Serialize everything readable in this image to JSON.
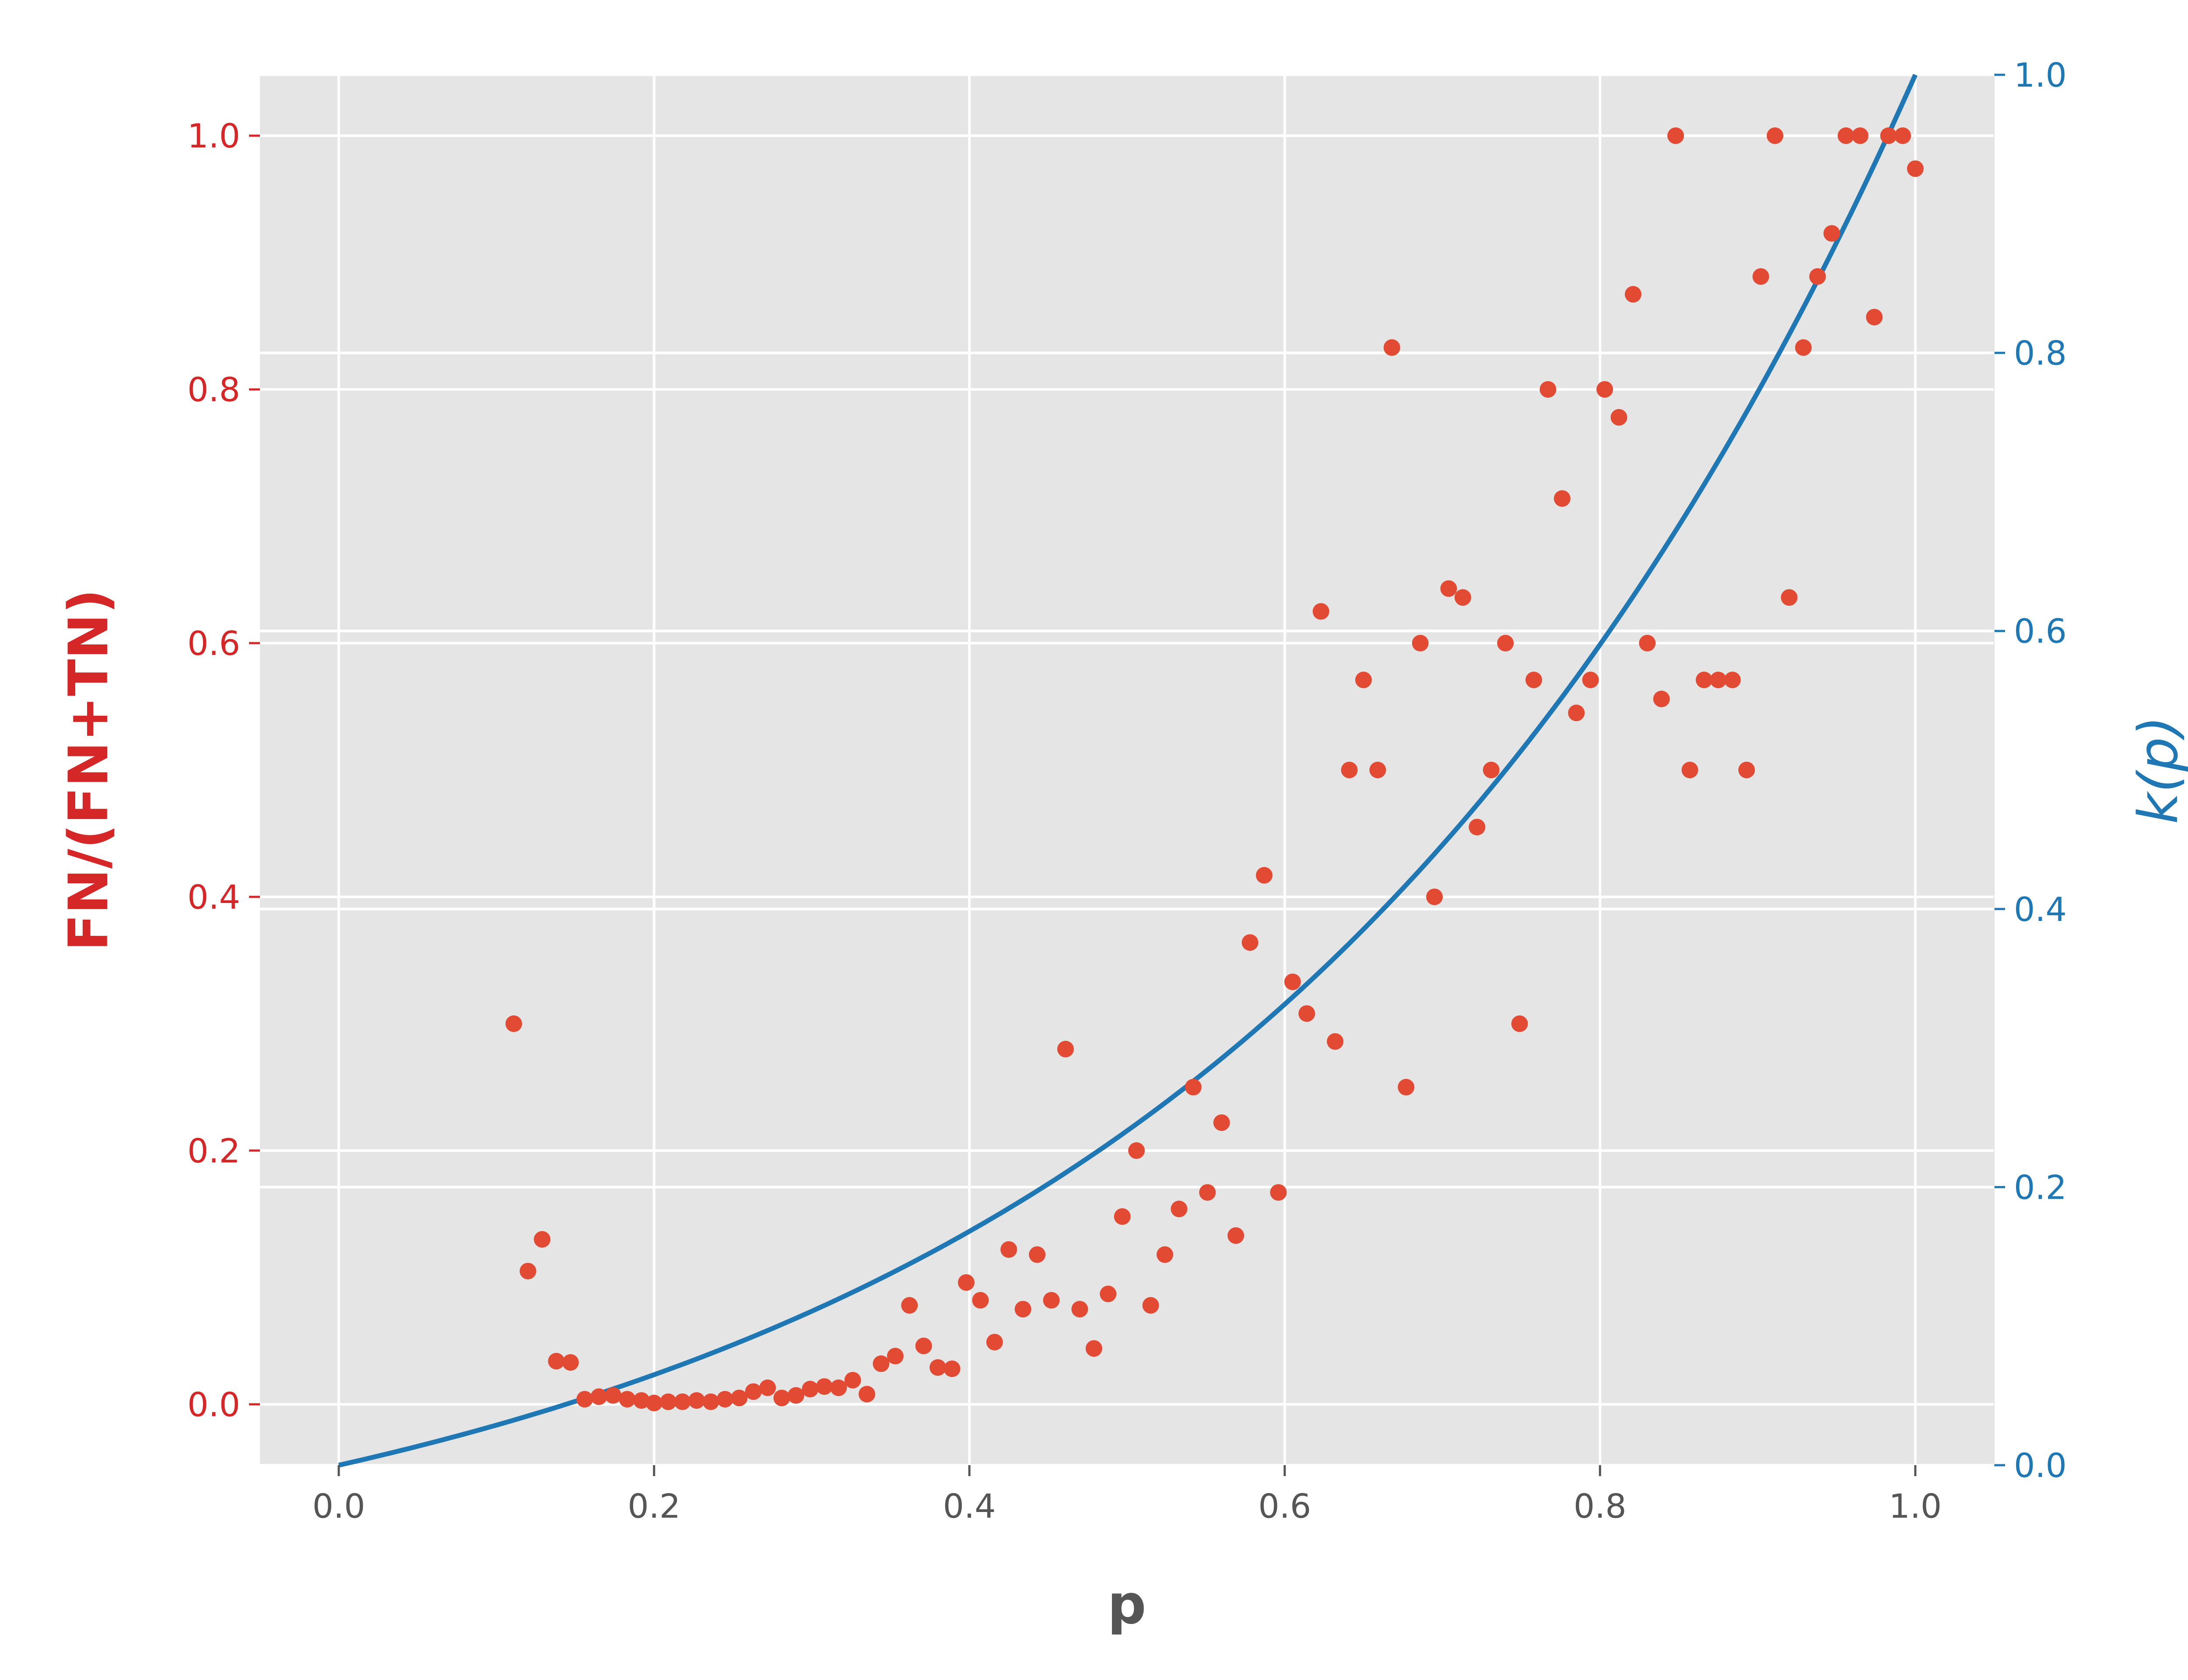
{
  "chart_data": {
    "type": "scatter",
    "xlabel": "p",
    "ylabel_left": "FN/(FN+TN)",
    "ylabel_right": "k(p)",
    "x_axis": {
      "lim": [
        -0.05,
        1.05
      ],
      "ticks": [
        0.0,
        0.2,
        0.4,
        0.6,
        0.8,
        1.0
      ],
      "tick_labels": [
        "0.0",
        "0.2",
        "0.4",
        "0.6",
        "0.8",
        "1.0"
      ]
    },
    "y_left_axis": {
      "lim": [
        -0.048,
        1.048
      ],
      "ticks": [
        0.0,
        0.2,
        0.4,
        0.6,
        0.8,
        1.0
      ],
      "tick_labels": [
        "0.0",
        "0.2",
        "0.4",
        "0.6",
        "0.8",
        "1.0"
      ]
    },
    "y_right_axis": {
      "lim": [
        0.0,
        1.0
      ],
      "ticks": [
        0.0,
        0.2,
        0.4,
        0.6,
        0.8,
        1.0
      ],
      "tick_labels": [
        "0.0",
        "0.2",
        "0.4",
        "0.6",
        "0.8",
        "1.0"
      ]
    },
    "grid": true,
    "colors": {
      "scatter": "#E24A33",
      "line": "#1F77B4",
      "left_axis": "#D62728",
      "right_axis": "#1F77B4",
      "background": "#E5E5E5",
      "grid": "#FFFFFF",
      "bottom_text": "#555555"
    },
    "series": [
      {
        "type": "scatter",
        "axis": "left",
        "points": [
          [
            0.111,
            0.3
          ],
          [
            0.12,
            0.105
          ],
          [
            0.129,
            0.13
          ],
          [
            0.138,
            0.034
          ],
          [
            0.147,
            0.033
          ],
          [
            0.156,
            0.004
          ],
          [
            0.165,
            0.006
          ],
          [
            0.174,
            0.007
          ],
          [
            0.183,
            0.004
          ],
          [
            0.192,
            0.003
          ],
          [
            0.2,
            0.001
          ],
          [
            0.209,
            0.002
          ],
          [
            0.218,
            0.002
          ],
          [
            0.227,
            0.003
          ],
          [
            0.236,
            0.002
          ],
          [
            0.245,
            0.004
          ],
          [
            0.254,
            0.005
          ],
          [
            0.263,
            0.01
          ],
          [
            0.272,
            0.013
          ],
          [
            0.281,
            0.005
          ],
          [
            0.29,
            0.007
          ],
          [
            0.299,
            0.012
          ],
          [
            0.308,
            0.014
          ],
          [
            0.317,
            0.013
          ],
          [
            0.326,
            0.019
          ],
          [
            0.335,
            0.008
          ],
          [
            0.344,
            0.032
          ],
          [
            0.353,
            0.038
          ],
          [
            0.362,
            0.078
          ],
          [
            0.371,
            0.046
          ],
          [
            0.38,
            0.029
          ],
          [
            0.389,
            0.028
          ],
          [
            0.398,
            0.096
          ],
          [
            0.407,
            0.082
          ],
          [
            0.416,
            0.049
          ],
          [
            0.425,
            0.122
          ],
          [
            0.434,
            0.075
          ],
          [
            0.443,
            0.118
          ],
          [
            0.452,
            0.082
          ],
          [
            0.461,
            0.28
          ],
          [
            0.47,
            0.075
          ],
          [
            0.479,
            0.044
          ],
          [
            0.488,
            0.087
          ],
          [
            0.497,
            0.148
          ],
          [
            0.506,
            0.2
          ],
          [
            0.515,
            0.078
          ],
          [
            0.524,
            0.118
          ],
          [
            0.533,
            0.154
          ],
          [
            0.542,
            0.25
          ],
          [
            0.551,
            0.167
          ],
          [
            0.56,
            0.222
          ],
          [
            0.569,
            0.133
          ],
          [
            0.578,
            0.364
          ],
          [
            0.587,
            0.417
          ],
          [
            0.596,
            0.167
          ],
          [
            0.605,
            0.333
          ],
          [
            0.614,
            0.308
          ],
          [
            0.623,
            0.625
          ],
          [
            0.632,
            0.286
          ],
          [
            0.641,
            0.5
          ],
          [
            0.65,
            0.571
          ],
          [
            0.659,
            0.5
          ],
          [
            0.668,
            0.833
          ],
          [
            0.677,
            0.25
          ],
          [
            0.686,
            0.6
          ],
          [
            0.695,
            0.4
          ],
          [
            0.704,
            0.643
          ],
          [
            0.713,
            0.636
          ],
          [
            0.722,
            0.455
          ],
          [
            0.731,
            0.5
          ],
          [
            0.74,
            0.6
          ],
          [
            0.749,
            0.3
          ],
          [
            0.758,
            0.571
          ],
          [
            0.767,
            0.8
          ],
          [
            0.776,
            0.714
          ],
          [
            0.785,
            0.545
          ],
          [
            0.794,
            0.571
          ],
          [
            0.803,
            0.8
          ],
          [
            0.812,
            0.778
          ],
          [
            0.821,
            0.875
          ],
          [
            0.83,
            0.6
          ],
          [
            0.839,
            0.556
          ],
          [
            0.848,
            1.0
          ],
          [
            0.857,
            0.5
          ],
          [
            0.866,
            0.571
          ],
          [
            0.875,
            0.571
          ],
          [
            0.884,
            0.571
          ],
          [
            0.893,
            0.5
          ],
          [
            0.902,
            0.889
          ],
          [
            0.911,
            1.0
          ],
          [
            0.92,
            0.636
          ],
          [
            0.929,
            0.833
          ],
          [
            0.938,
            0.889
          ],
          [
            0.947,
            0.923
          ],
          [
            0.956,
            1.0
          ],
          [
            0.965,
            1.0
          ],
          [
            0.974,
            0.857
          ],
          [
            0.983,
            1.0
          ],
          [
            0.992,
            1.0
          ],
          [
            1.0,
            0.974
          ]
        ]
      },
      {
        "type": "line",
        "axis": "right",
        "function": "k(p) = (exp(2.3*p) - 1) / (exp(2.3) - 1)",
        "x_range": [
          0.0,
          1.0
        ]
      }
    ]
  }
}
